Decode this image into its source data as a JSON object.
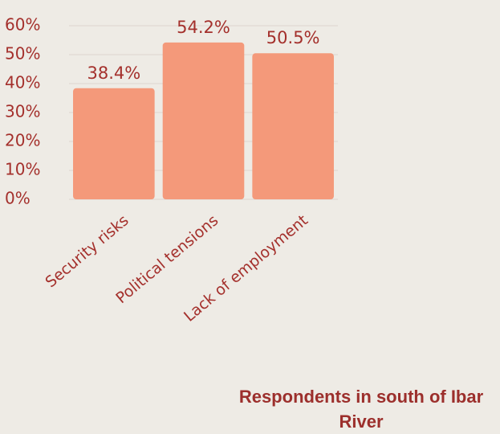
{
  "chart_data": {
    "type": "bar",
    "categories": [
      "Security risks",
      "Political tensions",
      "Lack of employment"
    ],
    "values": [
      38.4,
      54.2,
      50.5
    ],
    "value_labels": [
      "38.4%",
      "54.2%",
      "50.5%"
    ],
    "color": "#f4997a",
    "ylim": [
      0,
      60
    ],
    "yticks": [
      {
        "value": 0,
        "label": "0%"
      },
      {
        "value": 10,
        "label": "10%"
      },
      {
        "value": 20,
        "label": "20%"
      },
      {
        "value": 30,
        "label": "30%"
      },
      {
        "value": 40,
        "label": "40%"
      },
      {
        "value": 50,
        "label": "50%"
      },
      {
        "value": 60,
        "label": "60%"
      }
    ],
    "grid": true,
    "x_label": "Respondents in south of Ibar River"
  }
}
